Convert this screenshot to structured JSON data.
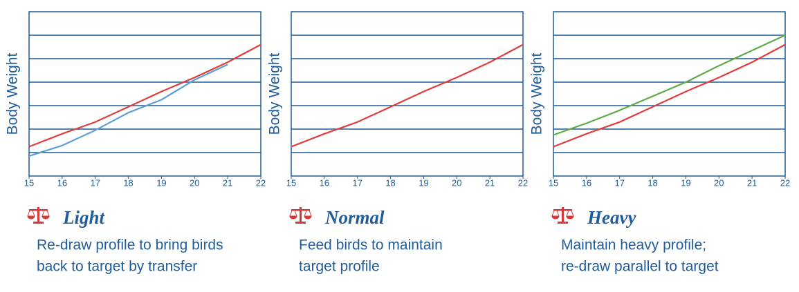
{
  "chart_data": [
    {
      "type": "line",
      "title": "Light",
      "description": [
        "Re-draw profile to bring birds",
        "back to target by transfer"
      ],
      "y_label": "Body Weight",
      "x": [
        15,
        16,
        17,
        18,
        19,
        20,
        21,
        22
      ],
      "xlim": [
        15,
        22
      ],
      "xticks": [
        15,
        16,
        17,
        18,
        19,
        20,
        21,
        22
      ],
      "ylim": [
        0,
        7
      ],
      "yticks": [
        1,
        2,
        3,
        4,
        5,
        6
      ],
      "grid": true,
      "series": [
        {
          "color": "#e23b3b",
          "values": [
            1.25,
            1.8,
            2.3,
            2.95,
            3.6,
            4.2,
            4.85,
            5.6
          ]
        },
        {
          "color": "#5b9fd3",
          "values": [
            0.85,
            1.3,
            1.95,
            2.7,
            3.25,
            4.1,
            4.75,
            null
          ]
        }
      ]
    },
    {
      "type": "line",
      "title": "Normal",
      "description": [
        "Feed birds to maintain",
        "target profile"
      ],
      "y_label": "Body Weight",
      "x": [
        15,
        16,
        17,
        18,
        19,
        20,
        21,
        22
      ],
      "xlim": [
        15,
        22
      ],
      "xticks": [
        15,
        16,
        17,
        18,
        19,
        20,
        21,
        22
      ],
      "ylim": [
        0,
        7
      ],
      "yticks": [
        1,
        2,
        3,
        4,
        5,
        6
      ],
      "grid": true,
      "series": [
        {
          "color": "#e23b3b",
          "values": [
            1.25,
            1.8,
            2.3,
            2.95,
            3.6,
            4.2,
            4.85,
            5.6
          ]
        }
      ]
    },
    {
      "type": "line",
      "title": "Heavy",
      "description": [
        "Maintain heavy profile;",
        "re-draw parallel to target"
      ],
      "y_label": "Body Weight",
      "x": [
        15,
        16,
        17,
        18,
        19,
        20,
        21,
        22
      ],
      "xlim": [
        15,
        22
      ],
      "xticks": [
        15,
        16,
        17,
        18,
        19,
        20,
        21,
        22
      ],
      "ylim": [
        0,
        7
      ],
      "yticks": [
        1,
        2,
        3,
        4,
        5,
        6
      ],
      "grid": true,
      "series": [
        {
          "color": "#e23b3b",
          "values": [
            1.25,
            1.8,
            2.3,
            2.95,
            3.6,
            4.2,
            4.85,
            5.6
          ]
        },
        {
          "color": "#5aab46",
          "values": [
            1.75,
            2.25,
            2.8,
            3.4,
            4.0,
            4.7,
            5.35,
            6.0
          ]
        }
      ]
    }
  ]
}
